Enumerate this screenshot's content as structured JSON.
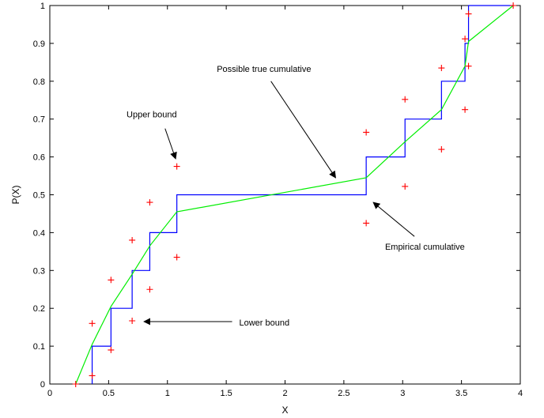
{
  "chart_data": {
    "type": "line",
    "title": "",
    "xlabel": "X",
    "ylabel": "P(X)",
    "xlim": [
      0,
      4
    ],
    "ylim": [
      0,
      1
    ],
    "xticks": [
      0,
      0.5,
      1,
      1.5,
      2,
      2.5,
      3,
      3.5,
      4
    ],
    "xtick_labels": [
      "0",
      "0.5",
      "1",
      "1.5",
      "2",
      "2.5",
      "3",
      "3.5",
      "4"
    ],
    "yticks": [
      0,
      0.1,
      0.2,
      0.3,
      0.4,
      0.5,
      0.6,
      0.7,
      0.8,
      0.9,
      1
    ],
    "ytick_labels": [
      "0",
      "0.1",
      "0.2",
      "0.3",
      "0.4",
      "0.5",
      "0.6",
      "0.7",
      "0.8",
      "0.9",
      "1"
    ],
    "grid": false,
    "series": [
      {
        "kind": "step",
        "color": "#0000ff",
        "x": [
          0.36,
          0.52,
          0.7,
          0.85,
          1.08,
          2.69,
          3.02,
          3.33,
          3.53,
          3.56,
          3.94
        ],
        "y": [
          0.1,
          0.2,
          0.3,
          0.4,
          0.5,
          0.6,
          0.7,
          0.8,
          0.9,
          1.0,
          1.0
        ]
      },
      {
        "kind": "line",
        "color": "#00ee00",
        "x": [
          0.22,
          0.36,
          0.52,
          0.7,
          0.85,
          1.08,
          2.69,
          3.02,
          3.33,
          3.53,
          3.56,
          3.94
        ],
        "y": [
          0.0,
          0.105,
          0.205,
          0.29,
          0.365,
          0.455,
          0.545,
          0.64,
          0.725,
          0.84,
          0.905,
          1.0
        ]
      },
      {
        "kind": "markers",
        "marker": "+",
        "color": "#ff0000",
        "x": [
          0.22,
          0.36,
          0.52,
          0.7,
          0.85,
          1.08,
          2.69,
          3.02,
          3.33,
          3.53,
          3.56,
          3.94
        ],
        "y": [
          0.0,
          0.16,
          0.275,
          0.38,
          0.48,
          0.575,
          0.665,
          0.752,
          0.835,
          0.912,
          0.978,
          1.0
        ]
      },
      {
        "kind": "markers",
        "marker": "+",
        "color": "#ff0000",
        "x": [
          0.36,
          0.52,
          0.7,
          0.85,
          1.08,
          2.69,
          3.02,
          3.33,
          3.53,
          3.56
        ],
        "y": [
          0.022,
          0.09,
          0.167,
          0.25,
          0.335,
          0.425,
          0.522,
          0.62,
          0.725,
          0.84
        ]
      }
    ],
    "annotations": [
      {
        "text": "Upper bound",
        "anchor": "end",
        "label_at": [
          1.08,
          0.705
        ],
        "arrow_from": [
          0.98,
          0.675
        ],
        "arrow_to": [
          1.07,
          0.595
        ]
      },
      {
        "text": "Possible true cumulative",
        "anchor": "start",
        "label_at": [
          1.42,
          0.825
        ],
        "arrow_from": [
          1.88,
          0.8
        ],
        "arrow_to": [
          2.43,
          0.545
        ]
      },
      {
        "text": "Empirical cumulative",
        "anchor": "start",
        "label_at": [
          2.85,
          0.355
        ],
        "arrow_from": [
          3.1,
          0.39
        ],
        "arrow_to": [
          2.75,
          0.48
        ]
      },
      {
        "text": "Lower bound",
        "anchor": "start",
        "label_at": [
          1.61,
          0.155
        ],
        "arrow_from": [
          1.55,
          0.165
        ],
        "arrow_to": [
          0.8,
          0.165
        ]
      }
    ]
  }
}
